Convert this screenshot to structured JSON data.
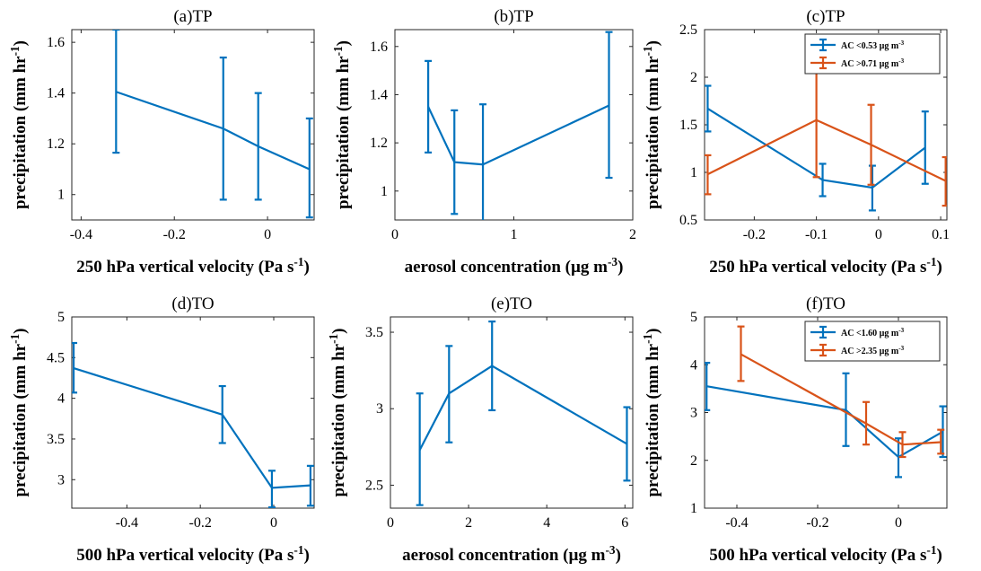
{
  "chart_data": [
    {
      "panel": "a",
      "type": "line",
      "title": "(a)TP",
      "xlabel": "250 hPa vertical velocity (Pa s-1)",
      "ylabel": "precipitation (mm hr-1)",
      "xlim": [
        -0.42,
        0.1
      ],
      "ylim": [
        0.9,
        1.65
      ],
      "xticks": [
        -0.4,
        -0.2,
        0
      ],
      "xticklabels": [
        "-0.4",
        "-0.2",
        "0"
      ],
      "yticks": [
        1.0,
        1.2,
        1.4,
        1.6
      ],
      "yticklabels": [
        "1",
        "1.2",
        "1.4",
        "1.6"
      ],
      "grid": false,
      "series": [
        {
          "color": "#0072BD",
          "x": [
            -0.325,
            -0.095,
            -0.02,
            0.09
          ],
          "y": [
            1.405,
            1.26,
            1.19,
            1.1
          ],
          "err_low": [
            1.165,
            0.98,
            0.98,
            0.91
          ],
          "err_high": [
            1.65,
            1.54,
            1.4,
            1.3
          ]
        }
      ]
    },
    {
      "panel": "b",
      "type": "line",
      "title": "(b)TP",
      "xlabel": "aerosol concentration (µg m-3)",
      "ylabel": "precipitation (mm hr-1)",
      "xlim": [
        0,
        2
      ],
      "ylim": [
        0.88,
        1.67
      ],
      "xticks": [
        0,
        1,
        2
      ],
      "xticklabels": [
        "0",
        "1",
        "2"
      ],
      "yticks": [
        1.0,
        1.2,
        1.4,
        1.6
      ],
      "yticklabels": [
        "1",
        "1.2",
        "1.4",
        "1.6"
      ],
      "grid": false,
      "series": [
        {
          "color": "#0072BD",
          "x": [
            0.28,
            0.5,
            0.74,
            1.8
          ],
          "y": [
            1.35,
            1.12,
            1.11,
            1.355
          ],
          "err_low": [
            1.16,
            0.905,
            0.87,
            1.055
          ],
          "err_high": [
            1.54,
            1.335,
            1.36,
            1.66
          ]
        }
      ]
    },
    {
      "panel": "c",
      "type": "line",
      "title": "(c)TP",
      "xlabel": "250 hPa vertical velocity (Pa s-1)",
      "ylabel": "precipitation (mm hr-1)",
      "xlim": [
        -0.28,
        0.11
      ],
      "ylim": [
        0.5,
        2.5
      ],
      "xticks": [
        -0.2,
        -0.1,
        0,
        0.1
      ],
      "xticklabels": [
        "-0.2",
        "-0.1",
        "0",
        "0.1"
      ],
      "yticks": [
        0.5,
        1.0,
        1.5,
        2.0,
        2.5
      ],
      "yticklabels": [
        "0.5",
        "1",
        "1.5",
        "2",
        "2.5"
      ],
      "grid": false,
      "legend": "top-right",
      "series": [
        {
          "name": "AC <0.53 µg m-3",
          "color": "#0072BD",
          "x": [
            -0.275,
            -0.09,
            -0.01,
            0.075
          ],
          "y": [
            1.67,
            0.92,
            0.84,
            1.26
          ],
          "err_low": [
            1.43,
            0.75,
            0.6,
            0.88
          ],
          "err_high": [
            1.91,
            1.09,
            1.07,
            1.64
          ]
        },
        {
          "name": "AC >0.71 µg m-3",
          "color": "#D95319",
          "x": [
            -0.275,
            -0.1,
            -0.012,
            0.108
          ],
          "y": [
            0.98,
            1.55,
            1.29,
            0.91
          ],
          "err_low": [
            0.77,
            0.95,
            0.87,
            0.65
          ],
          "err_high": [
            1.18,
            2.14,
            1.71,
            1.16
          ]
        }
      ]
    },
    {
      "panel": "d",
      "type": "line",
      "title": "(d)TO",
      "xlabel": "500 hPa vertical velocity (Pa s-1)",
      "ylabel": "precipitation (mm hr-1)",
      "xlim": [
        -0.55,
        0.11
      ],
      "ylim": [
        2.65,
        5.0
      ],
      "xticks": [
        -0.4,
        -0.2,
        0
      ],
      "xticklabels": [
        "-0.4",
        "-0.2",
        "0"
      ],
      "yticks": [
        3.0,
        3.5,
        4.0,
        4.5,
        5.0
      ],
      "yticklabels": [
        "3",
        "3.5",
        "4",
        "4.5",
        "5"
      ],
      "grid": false,
      "series": [
        {
          "color": "#0072BD",
          "x": [
            -0.545,
            -0.14,
            -0.005,
            0.1
          ],
          "y": [
            4.37,
            3.8,
            2.9,
            2.93
          ],
          "err_low": [
            4.07,
            3.45,
            2.66,
            2.68
          ],
          "err_high": [
            4.68,
            4.15,
            3.11,
            3.17
          ]
        }
      ]
    },
    {
      "panel": "e",
      "type": "line",
      "title": "(e)TO",
      "xlabel": "aerosol concentration (µg m-3)",
      "ylabel": "precipitation (mm hr-1)",
      "xlim": [
        0,
        6.2
      ],
      "ylim": [
        2.35,
        3.6
      ],
      "xticks": [
        0,
        2,
        4,
        6
      ],
      "xticklabels": [
        "0",
        "2",
        "4",
        "6"
      ],
      "yticks": [
        2.5,
        3.0,
        3.5
      ],
      "yticklabels": [
        "2.5",
        "3",
        "3.5"
      ],
      "grid": false,
      "series": [
        {
          "color": "#0072BD",
          "x": [
            0.75,
            1.5,
            2.6,
            6.05
          ],
          "y": [
            2.73,
            3.1,
            3.28,
            2.77
          ],
          "err_low": [
            2.37,
            2.78,
            2.99,
            2.53
          ],
          "err_high": [
            3.1,
            3.41,
            3.57,
            3.01
          ]
        }
      ]
    },
    {
      "panel": "f",
      "type": "line",
      "title": "(f)TO",
      "xlabel": "500 hPa vertical velocity (Pa s-1)",
      "ylabel": "precipitation (mm hr-1)",
      "xlim": [
        -0.48,
        0.12
      ],
      "ylim": [
        1.0,
        5.0
      ],
      "xticks": [
        -0.4,
        -0.2,
        0
      ],
      "xticklabels": [
        "-0.4",
        "-0.2",
        "0"
      ],
      "yticks": [
        1,
        2,
        3,
        4,
        5
      ],
      "yticklabels": [
        "1",
        "2",
        "3",
        "4",
        "5"
      ],
      "grid": false,
      "legend": "top-right",
      "series": [
        {
          "name": "AC <1.60 µg m-3",
          "color": "#0072BD",
          "x": [
            -0.475,
            -0.13,
            0.0,
            0.11
          ],
          "y": [
            3.55,
            3.05,
            2.07,
            2.6
          ],
          "err_low": [
            3.05,
            2.3,
            1.65,
            2.07
          ],
          "err_high": [
            4.04,
            3.82,
            2.46,
            3.13
          ]
        },
        {
          "name": "AC >2.35 µg m-3",
          "color": "#D95319",
          "x": [
            -0.39,
            -0.08,
            0.01,
            0.105
          ],
          "y": [
            4.22,
            2.77,
            2.33,
            2.38
          ],
          "err_low": [
            3.66,
            2.33,
            2.07,
            2.14
          ],
          "err_high": [
            4.8,
            3.22,
            2.59,
            2.64
          ]
        }
      ]
    }
  ]
}
